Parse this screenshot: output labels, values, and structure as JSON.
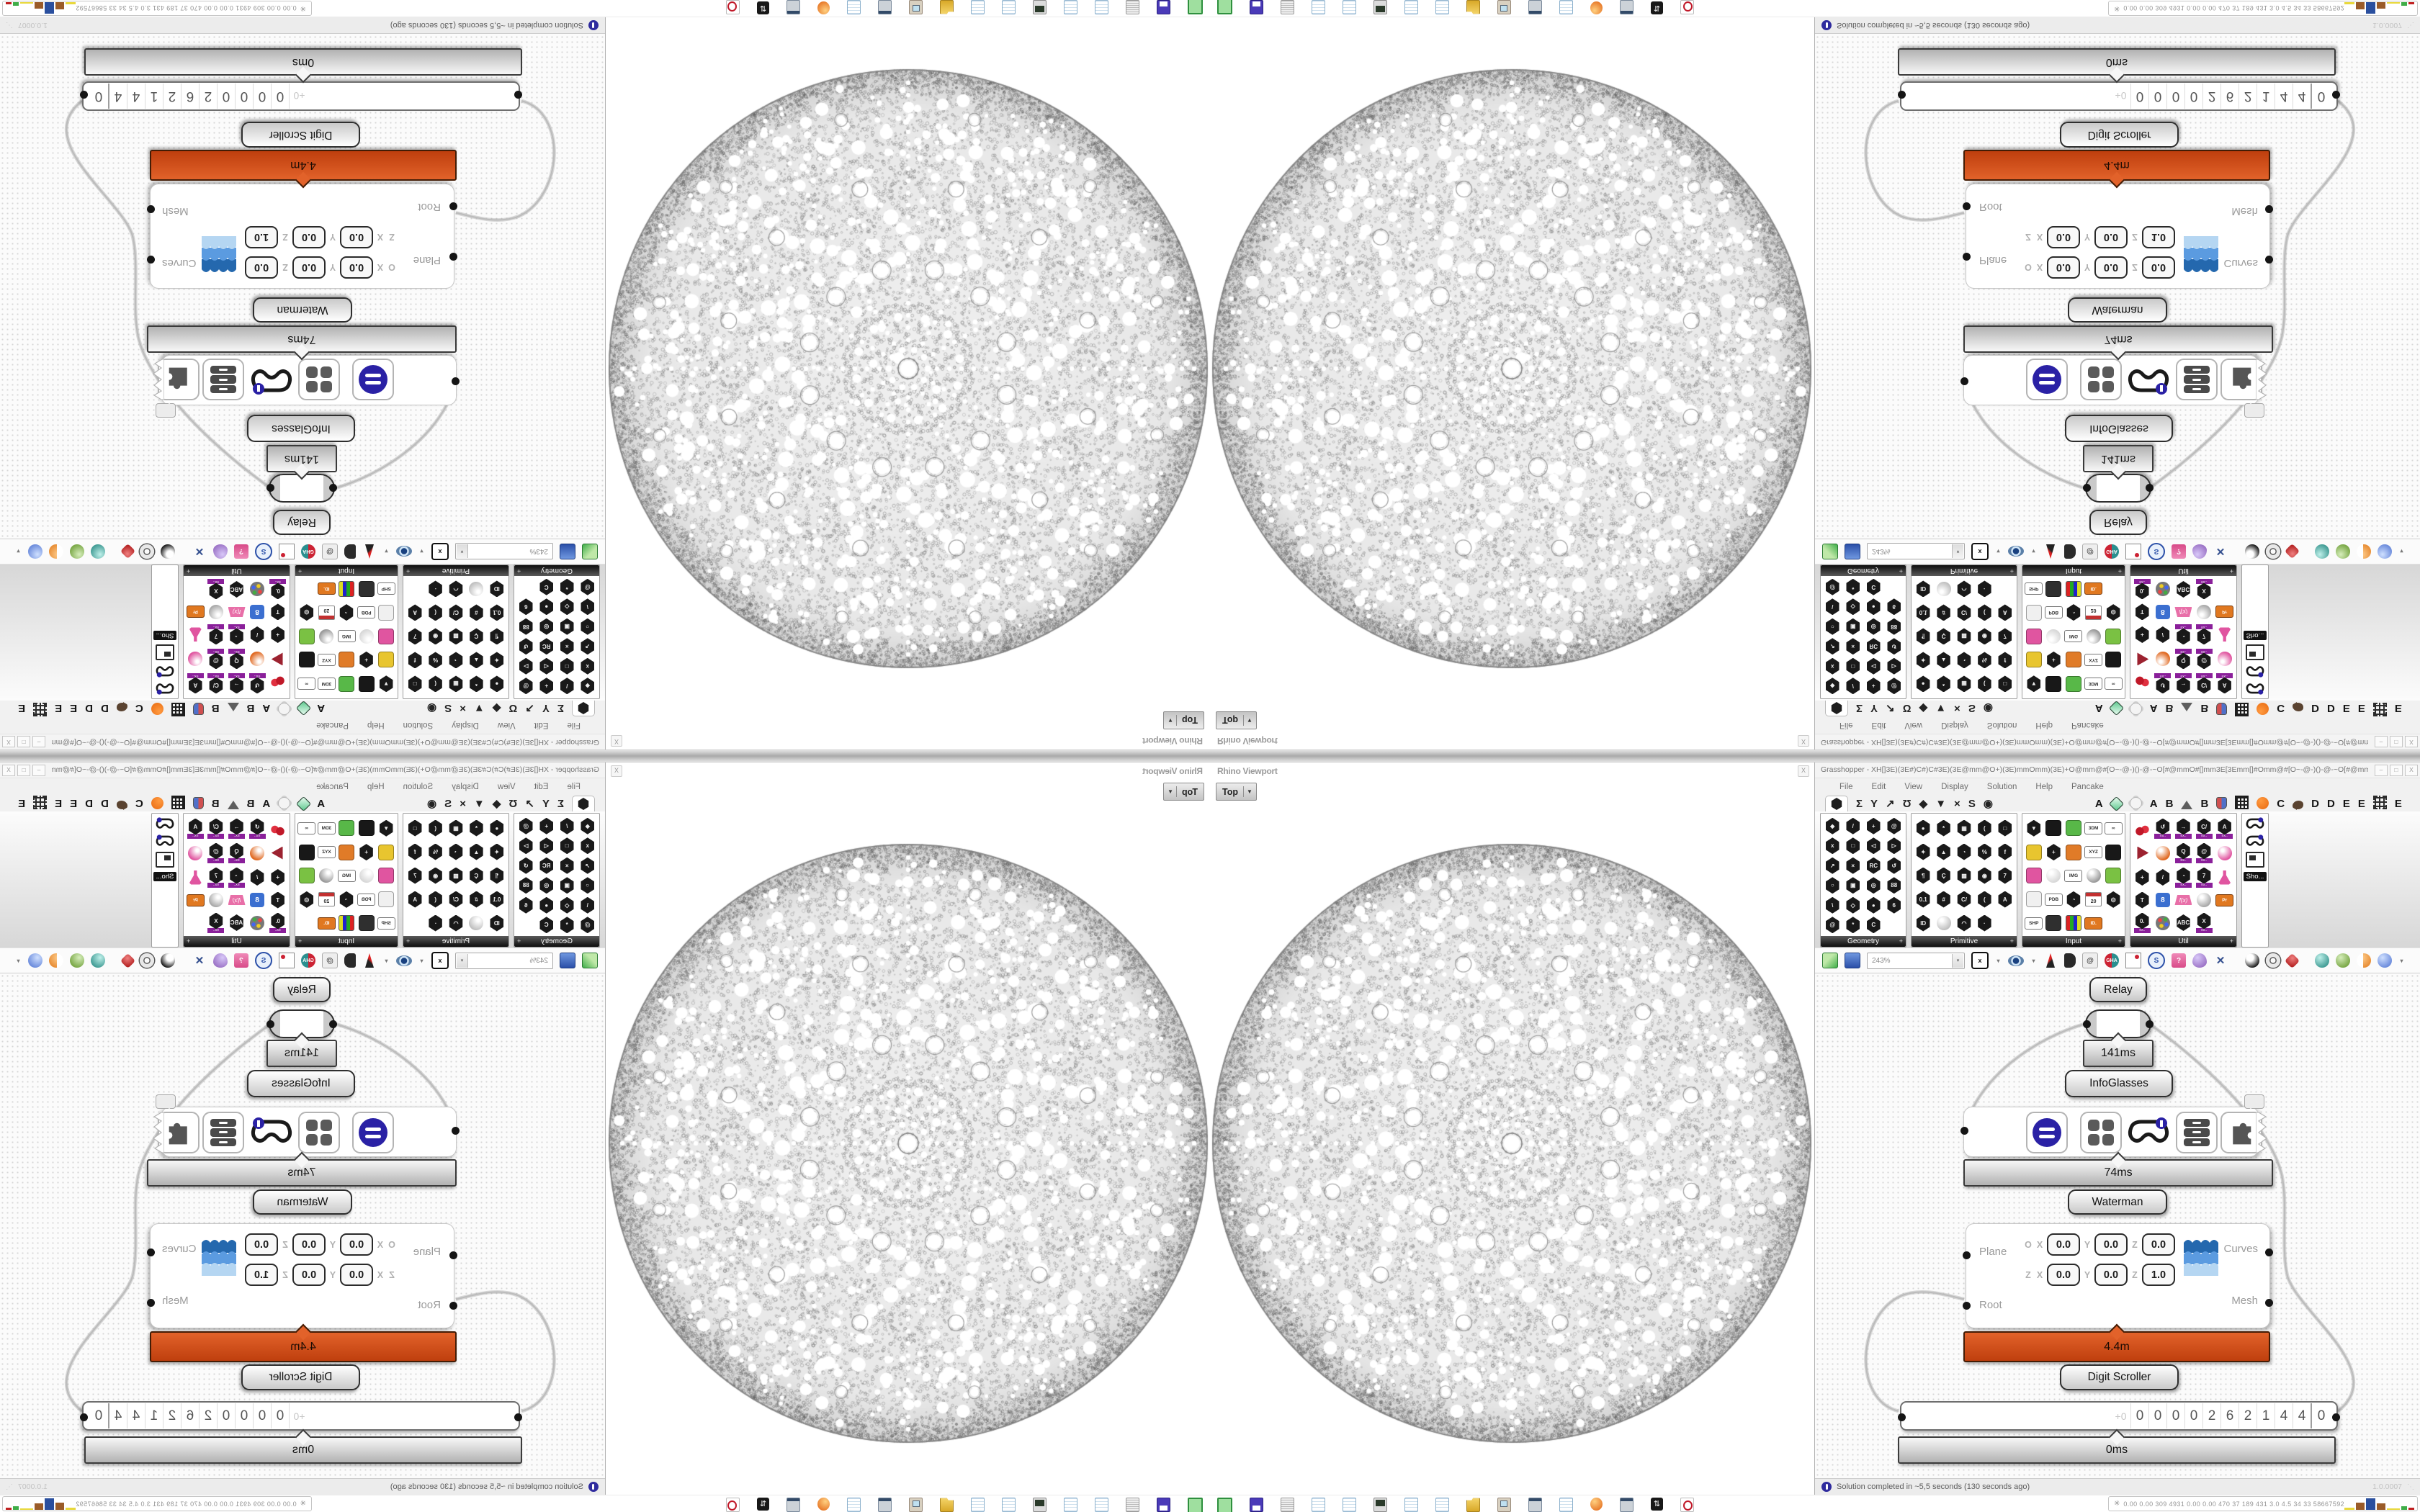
{
  "colors": {
    "accent_orange": "#d2491d",
    "silver_panel": "#c9c9c9",
    "indigo": "#2a21a5",
    "wire": "#bcbcbc",
    "canvas_dot": "#d7d7d7"
  },
  "viewport": {
    "panel_title": "Rhino Viewport",
    "close_label": "X",
    "view_button": "Top"
  },
  "gh": {
    "title": "Grasshopper - XH[]3E)(3E#)C#)C#3E)(3E@mm@O+)(3E)mmOmm)(3E)+O@mm@#[O~-@-)()-@-~O[#@mmO#[]mm3E[3Emm[]#Omm@#[O~-@-)()-@-~O[#@mm@O+)(3E)mmO...",
    "window_buttons": [
      {
        "glyph": "–",
        "name": "minimize"
      },
      {
        "glyph": "□",
        "name": "maximize"
      },
      {
        "glyph": "X",
        "name": "close"
      }
    ],
    "menu": [
      "File",
      "Edit",
      "View",
      "Display",
      "Solution",
      "Help",
      "Pancake"
    ],
    "std_tabs": [
      "hex",
      "Σ",
      "Y",
      "↗",
      "Ʊ",
      "◆",
      "▼",
      "×",
      "S",
      "◉"
    ],
    "plugin_tabs": [
      "A",
      "gem",
      "flower",
      "A",
      "B",
      "mountain",
      "B",
      "shield",
      "grid",
      "dot",
      "C",
      "bird",
      "D",
      "D",
      "E",
      "E",
      "grid2",
      "E"
    ],
    "palette": {
      "panels": [
        {
          "label": "Geometry",
          "cols": 4,
          "width": 118,
          "icons": [
            [
              "h",
              "◆"
            ],
            [
              "h",
              "/"
            ],
            [
              "h",
              "+"
            ],
            [
              "h",
              "@"
            ],
            [
              "h",
              "x"
            ],
            [
              "h",
              "□"
            ],
            [
              "h",
              "◁"
            ],
            [
              "h",
              "▷"
            ],
            [
              "h",
              "↗"
            ],
            [
              "h",
              "×"
            ],
            [
              "h",
              "RC"
            ],
            [
              "h",
              "↺"
            ],
            [
              "h",
              "○"
            ],
            [
              "h",
              "▣"
            ],
            [
              "h",
              "◎"
            ],
            [
              "h",
              "88"
            ],
            [
              "h",
              "\\"
            ],
            [
              "h",
              "◇"
            ],
            [
              "h",
              "●"
            ],
            [
              "h",
              "6"
            ],
            [
              "h",
              "@"
            ],
            [
              "h",
              "*"
            ],
            [
              "h",
              "C"
            ]
          ]
        },
        {
          "label": "Primitive",
          "cols": 5,
          "width": 146,
          "icons": [
            [
              "h",
              "●"
            ],
            [
              "h",
              "*"
            ],
            [
              "h",
              "▦"
            ],
            [
              "h",
              "("
            ],
            [
              "h",
              "□"
            ],
            [
              "h",
              "✦"
            ],
            [
              "h",
              "▲"
            ],
            [
              "h",
              "◔"
            ],
            [
              "h",
              "%"
            ],
            [
              "h",
              "f"
            ],
            [
              "h",
              "¶"
            ],
            [
              "h",
              "Ç"
            ],
            [
              "h",
              "▩"
            ],
            [
              "h",
              "◉"
            ],
            [
              "h",
              "7"
            ],
            [
              "h",
              "0.1"
            ],
            [
              "h",
              "#"
            ],
            [
              "h",
              "C/"
            ],
            [
              "h",
              "("
            ],
            [
              "h",
              "A"
            ],
            [
              "h",
              "ID"
            ],
            [
              "b",
              "#c0c0c0"
            ],
            [
              "h",
              "◠"
            ],
            [
              "h",
              "·"
            ]
          ]
        },
        {
          "label": "Input",
          "cols": 5,
          "width": 142,
          "icons": [
            [
              "h",
              "▼"
            ],
            [
              "s",
              "#181818"
            ],
            [
              "s",
              "#58b848"
            ],
            [
              "t",
              "3DM"
            ],
            [
              "t",
              "∞"
            ],
            [
              "s",
              "#e8c52f"
            ],
            [
              "h",
              "+"
            ],
            [
              "s",
              "#e07b28"
            ],
            [
              "t",
              "XYZ"
            ],
            [
              "s",
              "#181818"
            ],
            [
              "s",
              "#e055a0"
            ],
            [
              "b",
              "#d8d8d8"
            ],
            [
              "t",
              "IMG"
            ],
            [
              "b",
              "#9a9a9a"
            ],
            [
              "s",
              "#7ac143"
            ],
            [
              "s",
              "#f0f0f0"
            ],
            [
              "t",
              "PDB"
            ],
            [
              "h",
              "◔"
            ],
            [
              "cal",
              "20"
            ],
            [
              "h",
              "◎"
            ],
            [
              "t",
              "SHP"
            ],
            [
              "s",
              "#2f2f2f"
            ],
            [
              "bars"
            ],
            [
              "t",
              "ID.",
              "#e07820"
            ]
          ]
        },
        {
          "label": "Util",
          "cols": 5,
          "width": 147,
          "icons": [
            [
              "cherry"
            ],
            [
              "hp",
              "↺"
            ],
            [
              "hp",
              "→"
            ],
            [
              "hp",
              "C/"
            ],
            [
              "hp",
              "A"
            ],
            [
              "play"
            ],
            [
              "b",
              "#e06820"
            ],
            [
              "hp",
              "Q"
            ],
            [
              "hp",
              "@"
            ],
            [
              "b",
              "#e055a0"
            ],
            [
              "h",
              "+"
            ],
            [
              "h",
              "/"
            ],
            [
              "hp",
              "◔"
            ],
            [
              "hp",
              "7"
            ],
            [
              "flask"
            ],
            [
              "h",
              "T"
            ],
            [
              "s2",
              "8"
            ],
            [
              "fx",
              "f(x)"
            ],
            [
              "b",
              "#aaaaaa"
            ],
            [
              "t",
              "Pr",
              "#e07820"
            ],
            [
              "hp",
              "0."
            ],
            [
              "pal"
            ],
            [
              "h",
              "ABC"
            ],
            [
              "hp",
              "X"
            ]
          ]
        }
      ],
      "more_icons": [
        "goggles",
        "goggles",
        "projector"
      ],
      "more_label": "Sho..."
    },
    "toolbar": {
      "zoom": "243%",
      "items": [
        [
          "open"
        ],
        [
          "save"
        ],
        [
          "combo"
        ],
        [
          "ext",
          "x"
        ],
        [
          "dd",
          "▾"
        ],
        [
          "eye"
        ],
        [
          "dd",
          "▾"
        ],
        [
          "pen"
        ],
        [
          "door"
        ],
        [
          "at",
          "@"
        ],
        [
          "gha",
          "GHA"
        ],
        [
          "shot"
        ],
        [
          "mag",
          "S"
        ],
        [
          "bag",
          "?"
        ],
        [
          "bulb"
        ],
        [
          "unt",
          "✕"
        ],
        [
          "sp"
        ],
        [
          "ballk"
        ],
        [
          "donut"
        ],
        [
          "gem"
        ],
        [
          "sp"
        ],
        [
          "ballt"
        ],
        [
          "ballg"
        ],
        [
          "ballo"
        ],
        [
          "ballb"
        ],
        [
          "dd",
          "▾"
        ]
      ]
    },
    "status": {
      "text": "Solution completed in ~5,5 seconds (130 seconds ago)",
      "version": "1.0.0007",
      "grip": "⋱"
    }
  },
  "nodes": {
    "relay_label": "Relay",
    "relay_ms": "141ms",
    "infoglasses_label": "InfoGlasses",
    "infoglasses_ms": "74ms",
    "waterman_label": "Waterman",
    "waterman_time": "4.4m",
    "waterman": {
      "inputs": [
        "Plane",
        "Root"
      ],
      "outputs": [
        "Curves",
        "Mesh"
      ],
      "rows": [
        {
          "prefix": "O",
          "cells": [
            [
              "X",
              "0.0"
            ],
            [
              "Y",
              "0.0"
            ],
            [
              "Z",
              "0.0"
            ]
          ]
        },
        {
          "prefix": "Z",
          "cells": [
            [
              "X",
              "0.0"
            ],
            [
              "Y",
              "0.0"
            ],
            [
              "Z",
              "1.0"
            ]
          ]
        }
      ]
    },
    "scroller_label": "Digit Scroller",
    "scroller_ms": "0ms",
    "scroller": {
      "sign": "+0",
      "digits": [
        "0",
        "0",
        "0",
        "0",
        "2",
        "6",
        "2",
        "1",
        "4",
        "4"
      ],
      "decimal": "0"
    }
  },
  "taskbar_icons": [
    "chip",
    "floppy",
    "receipt",
    "note",
    "note",
    "monitor",
    "note",
    "note",
    "folder",
    "computer",
    "calc",
    "note",
    "firefox",
    "calc",
    "arrows",
    "record"
  ],
  "stats": {
    "star": "✳",
    "values": "0.00 0.00 309 4931 0.00 0.00 470 37 189 431 3.0 4.5 34 33 58667592",
    "chart": [
      [
        "#e8d83c",
        3,
        14
      ],
      [
        "#9a5b28",
        10,
        12
      ],
      [
        "#2a4f9e",
        16,
        13
      ],
      [
        "#9a5b28",
        9,
        12
      ],
      [
        "#e8d83c",
        2,
        18
      ],
      [
        "#3fae49",
        5,
        8
      ],
      [
        "#c02020",
        3,
        8
      ]
    ]
  }
}
